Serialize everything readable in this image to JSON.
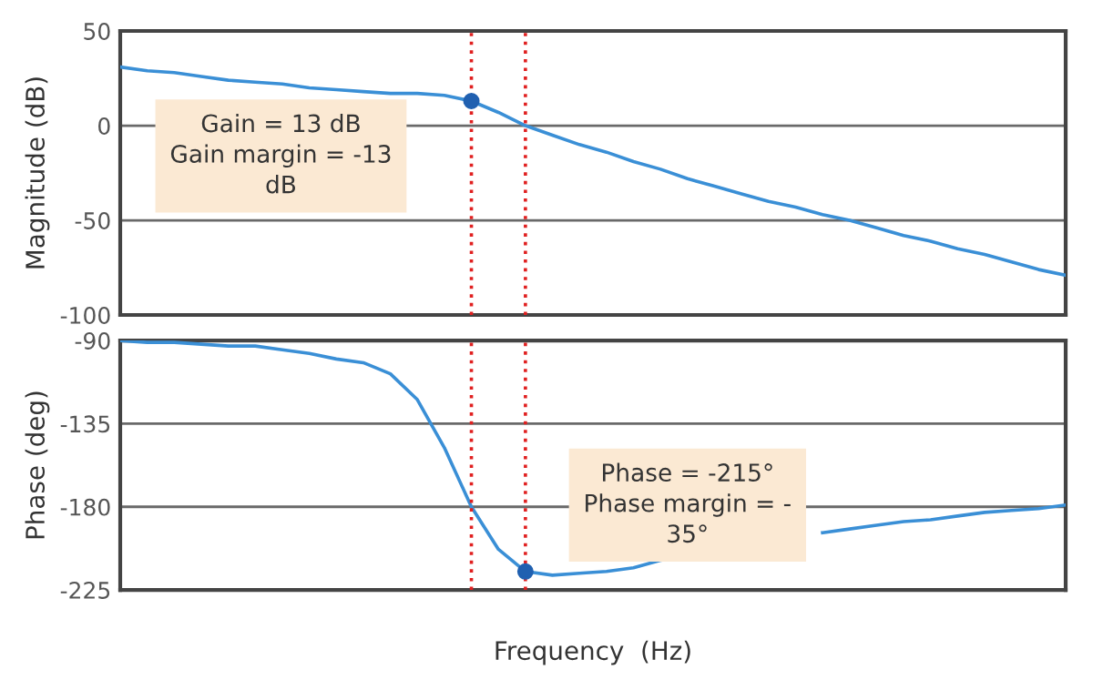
{
  "chart_data": [
    {
      "type": "line",
      "ylabel": "Magnitude (dB)",
      "categories": [
        null,
        null,
        null,
        null,
        null,
        null,
        null,
        null,
        null,
        null,
        null,
        null,
        null,
        null,
        null,
        null,
        null,
        null,
        null,
        null,
        null,
        null,
        null,
        null,
        null,
        null,
        null,
        null,
        null,
        null,
        null,
        null,
        null,
        null,
        null,
        null
      ],
      "series": [
        {
          "color": "#3a8fd6",
          "values": [
            31,
            29,
            28,
            26,
            24,
            23,
            22,
            20,
            19,
            18,
            17,
            17,
            16,
            13,
            7,
            0,
            -5,
            -10,
            -14,
            -19,
            -23,
            -28,
            -32,
            -36,
            -40,
            -43,
            -47,
            -50,
            -54,
            -58,
            -61,
            -65,
            -68,
            -72,
            -76,
            -79
          ]
        },
        {
          "type": "scatter",
          "color": "#2060b0",
          "marker": "circle",
          "values": [
            null,
            null,
            null,
            null,
            null,
            null,
            null,
            null,
            null,
            null,
            null,
            null,
            null,
            13,
            null,
            null,
            null,
            null,
            null,
            null,
            null,
            null,
            null,
            null,
            null,
            null,
            null,
            null,
            null,
            null,
            null,
            null,
            null,
            null,
            null,
            null
          ]
        }
      ],
      "ylim": [
        -100,
        50
      ],
      "yticks": [
        -100,
        -50,
        0,
        50
      ],
      "grid": "y",
      "tick_labels": "y",
      "annotations": [
        "Gain = 13 dB\nGain margin = -13\ndB"
      ]
    },
    {
      "type": "line",
      "xlabel": "Frequency  (Hz)",
      "ylabel": "Phase (deg)",
      "categories": [
        null,
        null,
        null,
        null,
        null,
        null,
        null,
        null,
        null,
        null,
        null,
        null,
        null,
        null,
        null,
        null,
        null,
        null,
        null,
        null,
        null,
        null,
        null,
        null,
        null,
        null,
        null,
        null,
        null,
        null,
        null,
        null,
        null,
        null,
        null,
        null
      ],
      "series": [
        {
          "color": "#3a8fd6",
          "values": [
            -90,
            -91,
            -91,
            -92,
            -93,
            -93,
            -95,
            -97,
            -100,
            -102,
            -108,
            -122,
            -148,
            -180,
            -203,
            -215,
            -217,
            -216,
            -215,
            -213,
            -209,
            null,
            null,
            null,
            null,
            null,
            -194,
            -192,
            -190,
            -188,
            -187,
            -185,
            -183,
            -182,
            -181,
            -179
          ]
        },
        {
          "type": "scatter",
          "color": "#2060b0",
          "marker": "circle",
          "values": [
            null,
            null,
            null,
            null,
            null,
            null,
            null,
            null,
            null,
            null,
            null,
            null,
            null,
            null,
            null,
            -215,
            null,
            null,
            null,
            null,
            null,
            null,
            null,
            null,
            null,
            null,
            null,
            null,
            null,
            null,
            null,
            null,
            null,
            null,
            null,
            null
          ]
        }
      ],
      "ylim": [
        -225,
        -90
      ],
      "yticks": [
        -225,
        -180,
        -135,
        -90
      ],
      "grid": "y",
      "tick_labels": "y",
      "annotations": [
        "Phase = -215°\nPhase margin = -\n35°"
      ]
    }
  ]
}
